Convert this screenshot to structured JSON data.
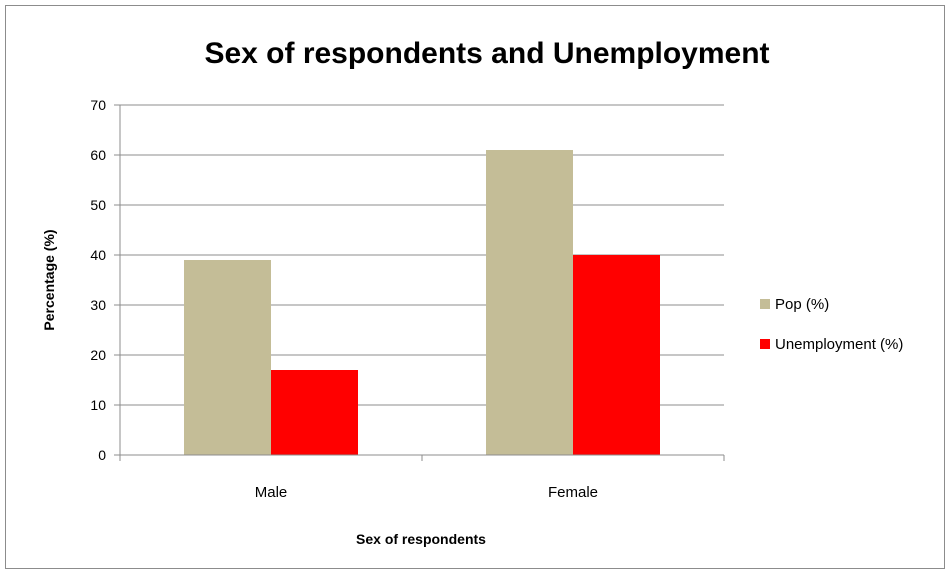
{
  "chart_data": {
    "type": "bar",
    "title": "Sex of respondents and Unemployment",
    "xlabel": "Sex of respondents",
    "ylabel": "Percentage (%)",
    "categories": [
      "Male",
      "Female"
    ],
    "series": [
      {
        "name": "Pop (%)",
        "values": [
          39,
          61
        ],
        "color": "#c4bd97"
      },
      {
        "name": "Unemployment (%)",
        "values": [
          17,
          40
        ],
        "color": "#ff0000"
      }
    ],
    "ylim": [
      0,
      70
    ],
    "yticks": [
      "0",
      "10",
      "20",
      "30",
      "40",
      "50",
      "60",
      "70"
    ],
    "grid": true,
    "legend_position": "right"
  }
}
